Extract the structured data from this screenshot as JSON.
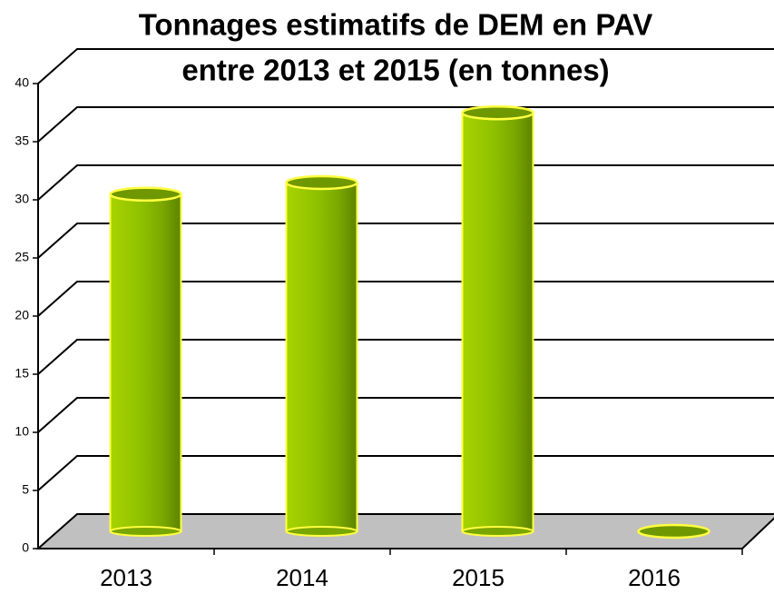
{
  "chart_data": {
    "type": "bar3d",
    "title": [
      "Tonnages estimatifs de DEM en PAV",
      "entre 2013 et 2015 (en tonnes)"
    ],
    "categories": [
      "2013",
      "2014",
      "2015",
      "2016"
    ],
    "values": [
      29,
      30,
      36,
      0
    ],
    "color": "#8fc400",
    "ylim": [
      0,
      40
    ],
    "yticks": [
      0,
      5,
      10,
      15,
      20,
      25,
      30,
      35,
      40
    ],
    "grid": true
  }
}
